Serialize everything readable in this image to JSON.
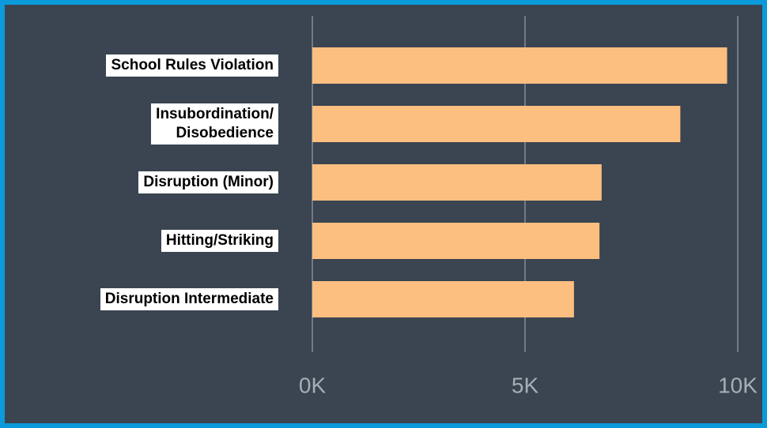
{
  "chart_data": {
    "type": "bar",
    "orientation": "horizontal",
    "categories": [
      "School Rules Violation",
      "Insubordination/\nDisobedience",
      "Disruption (Minor)",
      "Hitting/Striking",
      "Disruption Intermediate"
    ],
    "values": [
      9750,
      8650,
      6800,
      6750,
      6150
    ],
    "color": "#fdbf80",
    "xlim": [
      0,
      10000
    ],
    "xticks": [
      {
        "value": 0,
        "label": "0K"
      },
      {
        "value": 5000,
        "label": "5K"
      },
      {
        "value": 10000,
        "label": "10K"
      }
    ],
    "grid": true
  }
}
